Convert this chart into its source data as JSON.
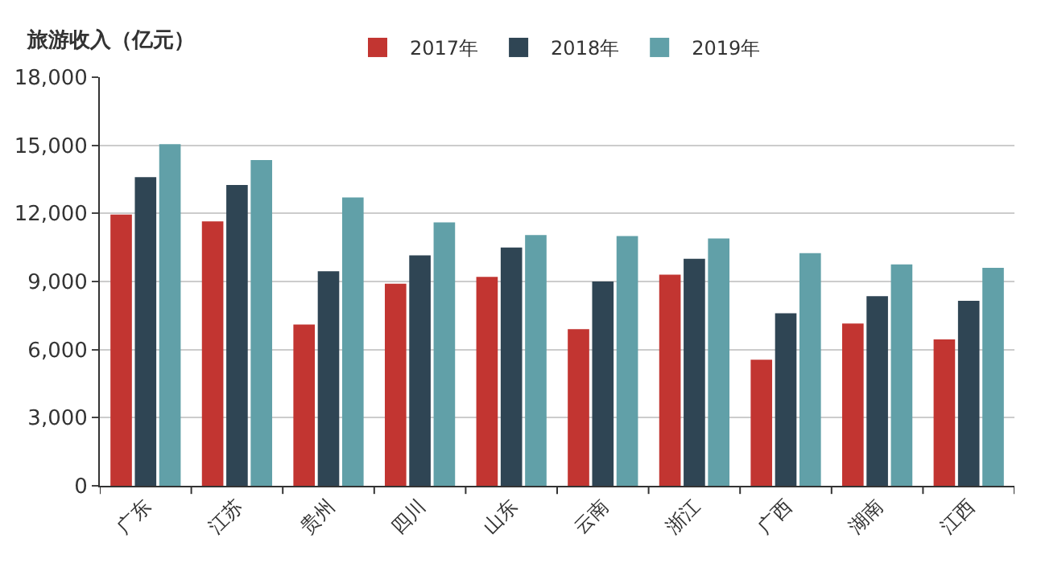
{
  "chart_data": {
    "type": "bar",
    "ylabel": "旅游收入（亿元）",
    "categories": [
      "广东",
      "江苏",
      "贵州",
      "四川",
      "山东",
      "云南",
      "浙江",
      "广西",
      "湖南",
      "江西"
    ],
    "series": [
      {
        "name": "2017年",
        "color": "#c23531",
        "values": [
          11950,
          11650,
          7100,
          8900,
          9200,
          6900,
          9300,
          5550,
          7150,
          6450
        ]
      },
      {
        "name": "2018年",
        "color": "#2f4554",
        "values": [
          13600,
          13250,
          9450,
          10150,
          10500,
          9000,
          10000,
          7600,
          8350,
          8150
        ]
      },
      {
        "name": "2019年",
        "color": "#61a0a8",
        "values": [
          15050,
          14350,
          12700,
          11600,
          11050,
          11000,
          10900,
          10250,
          9750,
          9600
        ]
      }
    ],
    "ylim": [
      0,
      18000
    ],
    "yticks": [
      {
        "value": 0,
        "label": "0"
      },
      {
        "value": 3000,
        "label": "3,000"
      },
      {
        "value": 6000,
        "label": "6,000"
      },
      {
        "value": 9000,
        "label": "9,000"
      },
      {
        "value": 12000,
        "label": "12,000"
      },
      {
        "value": 15000,
        "label": "15,000"
      },
      {
        "value": 18000,
        "label": "18,000"
      }
    ],
    "grid": "y",
    "legend": "top"
  }
}
